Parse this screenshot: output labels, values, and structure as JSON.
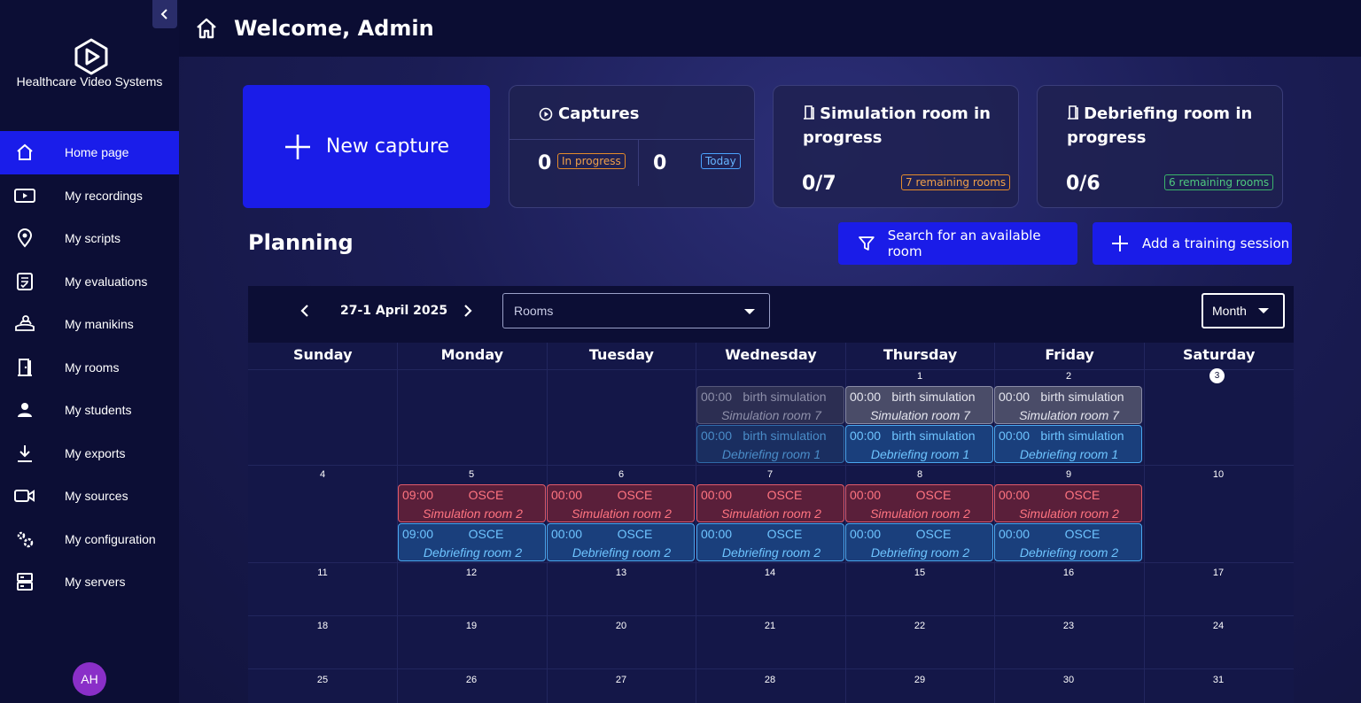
{
  "brand": {
    "name": "Healthcare Video Systems"
  },
  "header": {
    "welcome": "Welcome, Admin"
  },
  "sidebar": {
    "items": [
      {
        "label": "Home page",
        "icon": "home-icon"
      },
      {
        "label": "My recordings",
        "icon": "video-play-icon"
      },
      {
        "label": "My scripts",
        "icon": "map-pin-icon"
      },
      {
        "label": "My evaluations",
        "icon": "checklist-icon"
      },
      {
        "label": "My manikins",
        "icon": "manikin-icon"
      },
      {
        "label": "My rooms",
        "icon": "room-icon"
      },
      {
        "label": "My students",
        "icon": "user-icon"
      },
      {
        "label": "My exports",
        "icon": "download-icon"
      },
      {
        "label": "My sources",
        "icon": "camera-icon"
      },
      {
        "label": "My configuration",
        "icon": "gears-icon"
      },
      {
        "label": "My servers",
        "icon": "server-icon"
      }
    ],
    "avatar": "AH"
  },
  "dashboard": {
    "new_capture": "New capture",
    "captures": {
      "title": "Captures",
      "in_progress_count": "0",
      "in_progress_label": "In progress",
      "today_count": "0",
      "today_label": "Today"
    },
    "sim_rooms": {
      "title": "Simulation room in progress",
      "value": "0/7",
      "badge": "7 remaining rooms"
    },
    "debrief_rooms": {
      "title": "Debriefing room in progress",
      "value": "0/6",
      "badge": "6 remaining rooms"
    }
  },
  "planning": {
    "title": "Planning",
    "search_button": "Search for an available room",
    "add_button": "Add a training session",
    "range": "27-1 April 2025",
    "rooms_placeholder": "Rooms",
    "view": "Month",
    "days": [
      "Sunday",
      "Monday",
      "Tuesday",
      "Wednesday",
      "Thursday",
      "Friday",
      "Saturday"
    ],
    "weeks": [
      [
        "",
        "",
        "",
        "",
        "1",
        "2",
        "3"
      ],
      [
        "4",
        "5",
        "6",
        "7",
        "8",
        "9",
        "10"
      ],
      [
        "11",
        "12",
        "13",
        "14",
        "15",
        "16",
        "17"
      ],
      [
        "18",
        "19",
        "20",
        "21",
        "22",
        "23",
        "24"
      ],
      [
        "25",
        "26",
        "27",
        "28",
        "29",
        "30",
        "31"
      ]
    ],
    "events": {
      "birth_gray_faded": {
        "time": "00:00",
        "name": "birth simulation",
        "room": "Simulation room 7"
      },
      "birth_blue_faded": {
        "time": "00:00",
        "name": "birth simulation",
        "room": "Debriefing room 1"
      },
      "birth_gray": {
        "time": "00:00",
        "name": "birth simulation",
        "room": "Simulation room 7"
      },
      "birth_blue": {
        "time": "00:00",
        "name": "birth simulation",
        "room": "Debriefing room 1"
      },
      "osce_red_mon": {
        "time": "09:00",
        "name": "OSCE",
        "room": "Simulation room 2"
      },
      "osce_blue_mon": {
        "time": "09:00",
        "name": "OSCE",
        "room": "Debriefing room 2"
      },
      "osce_red": {
        "time": "00:00",
        "name": "OSCE",
        "room": "Simulation room 2"
      },
      "osce_blue": {
        "time": "00:00",
        "name": "OSCE",
        "room": "Debriefing room 2"
      }
    }
  }
}
